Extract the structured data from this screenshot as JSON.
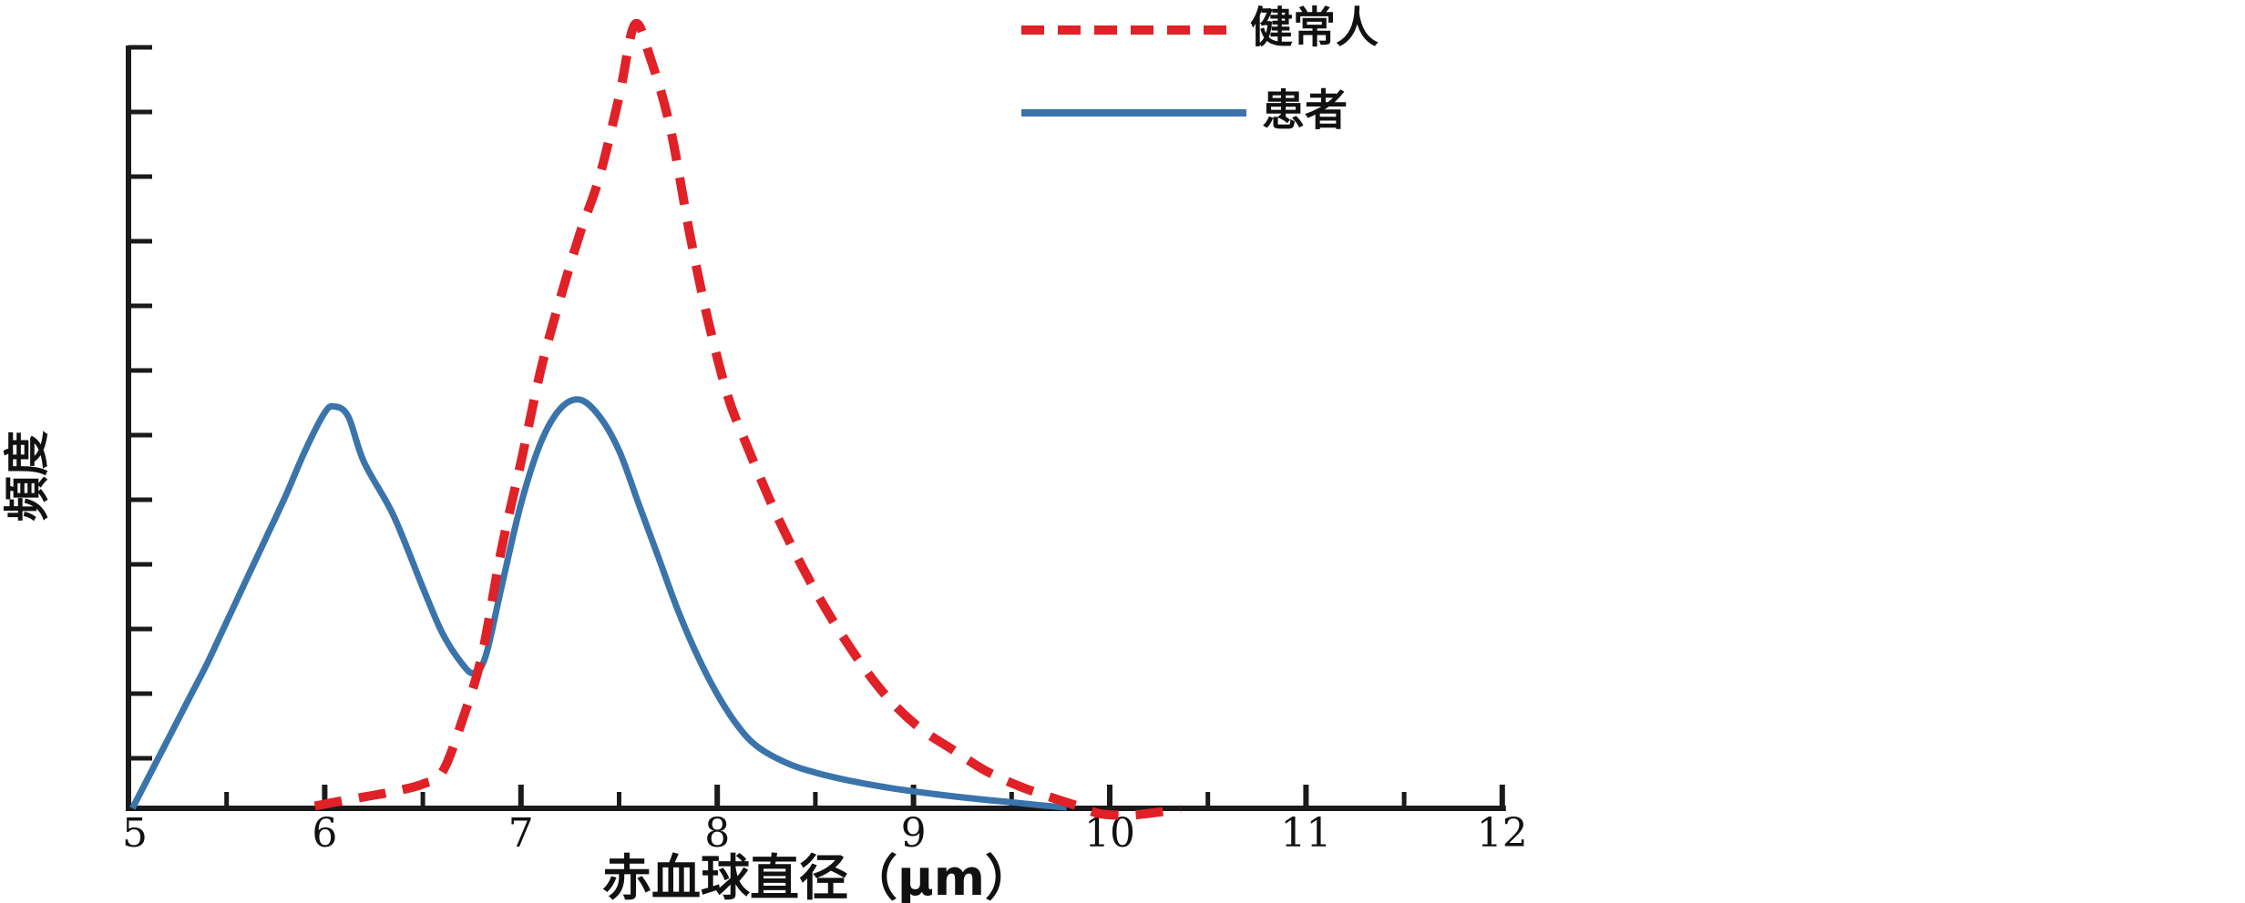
{
  "chart_data": {
    "type": "line",
    "title": "",
    "xlabel": "赤血球直径（μm）",
    "ylabel": "頻度",
    "xlim": [
      5,
      12
    ],
    "ylim": [
      0,
      1.05
    ],
    "x_ticks": [
      5,
      6,
      7,
      8,
      9,
      10,
      11,
      12
    ],
    "x_minor_ticks": [
      5.5,
      6.5,
      7.5,
      8.5,
      9.5,
      10.5,
      11.5
    ],
    "y_tick_count": 12,
    "y_tick_labels": "none (frequency axis unlabeled)",
    "grid": false,
    "legend_position": "top-right",
    "axis_color": "#1a1a1a",
    "series": [
      {
        "name": "健常人",
        "color": "#e02127",
        "line_style": "dashed",
        "points": [
          [
            5.95,
            0.003
          ],
          [
            6.05,
            0.008
          ],
          [
            6.2,
            0.015
          ],
          [
            6.35,
            0.022
          ],
          [
            6.5,
            0.032
          ],
          [
            6.6,
            0.048
          ],
          [
            6.7,
            0.115
          ],
          [
            6.8,
            0.2
          ],
          [
            6.9,
            0.34
          ],
          [
            7.0,
            0.455
          ],
          [
            7.1,
            0.575
          ],
          [
            7.2,
            0.67
          ],
          [
            7.3,
            0.755
          ],
          [
            7.4,
            0.83
          ],
          [
            7.5,
            0.935
          ],
          [
            7.58,
            1.03
          ],
          [
            7.66,
            0.985
          ],
          [
            7.76,
            0.895
          ],
          [
            7.86,
            0.755
          ],
          [
            7.95,
            0.645
          ],
          [
            8.05,
            0.545
          ],
          [
            8.13,
            0.49
          ],
          [
            8.3,
            0.387
          ],
          [
            8.48,
            0.295
          ],
          [
            8.66,
            0.218
          ],
          [
            8.84,
            0.154
          ],
          [
            9.02,
            0.108
          ],
          [
            9.2,
            0.077
          ],
          [
            9.37,
            0.049
          ],
          [
            9.55,
            0.028
          ],
          [
            9.73,
            0.012
          ],
          [
            9.85,
            0.002
          ],
          [
            9.95,
            -0.007
          ],
          [
            10.1,
            -0.009
          ],
          [
            10.25,
            -0.005
          ],
          [
            10.36,
            -0.001
          ]
        ]
      },
      {
        "name": "患者",
        "color": "#3a74ab",
        "line_style": "solid",
        "points": [
          [
            5.02,
            0.0
          ],
          [
            5.1,
            0.04
          ],
          [
            5.2,
            0.09
          ],
          [
            5.3,
            0.14
          ],
          [
            5.4,
            0.19
          ],
          [
            5.5,
            0.245
          ],
          [
            5.6,
            0.3
          ],
          [
            5.7,
            0.355
          ],
          [
            5.8,
            0.41
          ],
          [
            5.9,
            0.47
          ],
          [
            6.0,
            0.52
          ],
          [
            6.05,
            0.528
          ],
          [
            6.12,
            0.515
          ],
          [
            6.2,
            0.455
          ],
          [
            6.35,
            0.385
          ],
          [
            6.5,
            0.29
          ],
          [
            6.6,
            0.23
          ],
          [
            6.7,
            0.19
          ],
          [
            6.76,
            0.178
          ],
          [
            6.82,
            0.2
          ],
          [
            6.9,
            0.29
          ],
          [
            7.0,
            0.4
          ],
          [
            7.1,
            0.48
          ],
          [
            7.2,
            0.525
          ],
          [
            7.3,
            0.537
          ],
          [
            7.4,
            0.515
          ],
          [
            7.5,
            0.47
          ],
          [
            7.6,
            0.4
          ],
          [
            7.7,
            0.33
          ],
          [
            7.8,
            0.26
          ],
          [
            7.9,
            0.2
          ],
          [
            8.0,
            0.15
          ],
          [
            8.1,
            0.11
          ],
          [
            8.2,
            0.082
          ],
          [
            8.35,
            0.06
          ],
          [
            8.5,
            0.047
          ],
          [
            8.7,
            0.035
          ],
          [
            8.9,
            0.026
          ],
          [
            9.1,
            0.019
          ],
          [
            9.3,
            0.013
          ],
          [
            9.5,
            0.008
          ],
          [
            9.65,
            0.004
          ],
          [
            9.78,
            0.001
          ]
        ]
      }
    ]
  }
}
